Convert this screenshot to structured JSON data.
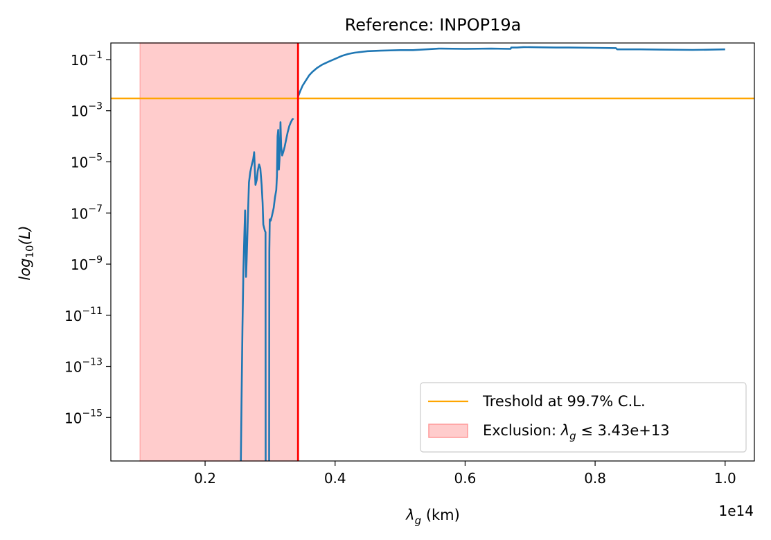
{
  "chart_data": {
    "type": "line",
    "title": "Reference: INPOP19a",
    "xlabel": "λg (km)",
    "xlabel_var": "λ",
    "xlabel_sub": "g",
    "xlabel_unit": " (km)",
    "ylabel": "log10(L)",
    "ylabel_main": "log",
    "ylabel_sub": "10",
    "ylabel_rest": "(L)",
    "x_offset_label": "1e14",
    "x_scale": "linear",
    "y_scale": "log",
    "xlim": [
      0.055,
      1.045
    ],
    "ylim_log10": [
      -16.7,
      -0.35
    ],
    "x_ticks": [
      0.2,
      0.4,
      0.6,
      0.8,
      1.0
    ],
    "x_tick_labels": [
      "0.2",
      "0.4",
      "0.6",
      "0.8",
      "1.0"
    ],
    "y_ticks_log10": [
      -1,
      -3,
      -5,
      -7,
      -9,
      -11,
      -13,
      -15
    ],
    "y_tick_bases": [
      "10",
      "10",
      "10",
      "10",
      "10",
      "10",
      "10",
      "10"
    ],
    "y_tick_exponents": [
      "−1",
      "−3",
      "−5",
      "−7",
      "−9",
      "−11",
      "−13",
      "−15"
    ],
    "threshold": {
      "label": "Treshold at 99.7% C.L.",
      "value_log10": -2.52,
      "color": "#ffa500"
    },
    "exclusion": {
      "label_prefix": "Exclusion: ",
      "label_var": "λ",
      "label_sub": "g",
      "label_rel": " ≤ ",
      "label_value": "3.43e+13",
      "x_start": 0.1,
      "x_end": 0.343,
      "fill_color": "#ffcccc",
      "edge_color": "#ff9999",
      "line_color": "#ff0000"
    },
    "series": [
      {
        "name": "likelihood",
        "color": "#1f77b4",
        "segments": [
          [
            [
              0.255,
              -16.8
            ],
            [
              0.256,
              -14.5
            ],
            [
              0.2575,
              -11.5
            ],
            [
              0.259,
              -9.2
            ],
            [
              0.2605,
              -7.8
            ],
            [
              0.2615,
              -6.9
            ],
            [
              0.263,
              -9.5
            ],
            [
              0.264,
              -8.8
            ],
            [
              0.2655,
              -7.5
            ],
            [
              0.2675,
              -5.8
            ],
            [
              0.2695,
              -5.4
            ],
            [
              0.272,
              -5.1
            ],
            [
              0.274,
              -4.9
            ],
            [
              0.2755,
              -4.62
            ],
            [
              0.2765,
              -5.3
            ],
            [
              0.2775,
              -5.9
            ],
            [
              0.2795,
              -5.7
            ],
            [
              0.281,
              -5.35
            ],
            [
              0.283,
              -5.1
            ],
            [
              0.285,
              -5.25
            ],
            [
              0.287,
              -5.9
            ],
            [
              0.2885,
              -6.6
            ],
            [
              0.2895,
              -7.45
            ],
            [
              0.292,
              -7.7
            ],
            [
              0.293,
              -7.75
            ],
            [
              0.2932,
              -16.8
            ]
          ],
          [
            [
              0.2985,
              -16.8
            ],
            [
              0.2988,
              -8.5
            ],
            [
              0.2995,
              -7.25
            ],
            [
              0.301,
              -7.3
            ],
            [
              0.303,
              -7.1
            ],
            [
              0.3055,
              -6.8
            ],
            [
              0.3075,
              -6.4
            ],
            [
              0.3095,
              -6.1
            ],
            [
              0.3105,
              -5.55
            ],
            [
              0.3115,
              -4.0
            ],
            [
              0.3125,
              -3.75
            ],
            [
              0.3135,
              -5.3
            ],
            [
              0.3145,
              -4.9
            ],
            [
              0.3155,
              -4.1
            ],
            [
              0.316,
              -3.45
            ],
            [
              0.317,
              -4.4
            ],
            [
              0.3185,
              -4.75
            ],
            [
              0.3205,
              -4.6
            ],
            [
              0.3225,
              -4.4
            ],
            [
              0.3245,
              -4.15
            ],
            [
              0.327,
              -3.85
            ],
            [
              0.3295,
              -3.6
            ],
            [
              0.332,
              -3.45
            ],
            [
              0.334,
              -3.35
            ],
            [
              0.336,
              -3.3
            ]
          ],
          [
            [
              0.343,
              -2.45
            ],
            [
              0.346,
              -2.25
            ],
            [
              0.35,
              -2.02
            ],
            [
              0.355,
              -1.82
            ],
            [
              0.36,
              -1.62
            ],
            [
              0.365,
              -1.48
            ],
            [
              0.372,
              -1.33
            ],
            [
              0.38,
              -1.2
            ],
            [
              0.39,
              -1.08
            ],
            [
              0.4,
              -0.97
            ],
            [
              0.41,
              -0.86
            ],
            [
              0.42,
              -0.78
            ],
            [
              0.43,
              -0.73
            ],
            [
              0.45,
              -0.67
            ],
            [
              0.47,
              -0.65
            ],
            [
              0.5,
              -0.63
            ],
            [
              0.52,
              -0.63
            ],
            [
              0.54,
              -0.6
            ],
            [
              0.56,
              -0.57
            ],
            [
              0.6,
              -0.58
            ],
            [
              0.64,
              -0.57
            ],
            [
              0.67,
              -0.58
            ],
            [
              0.671,
              -0.53
            ],
            [
              0.68,
              -0.53
            ],
            [
              0.69,
              -0.51
            ],
            [
              0.72,
              -0.52
            ],
            [
              0.74,
              -0.53
            ],
            [
              0.76,
              -0.53
            ],
            [
              0.8,
              -0.54
            ],
            [
              0.832,
              -0.55
            ],
            [
              0.834,
              -0.6
            ],
            [
              0.87,
              -0.6
            ],
            [
              0.9,
              -0.61
            ],
            [
              0.95,
              -0.62
            ],
            [
              0.98,
              -0.61
            ],
            [
              1.0,
              -0.6
            ]
          ]
        ]
      }
    ]
  }
}
